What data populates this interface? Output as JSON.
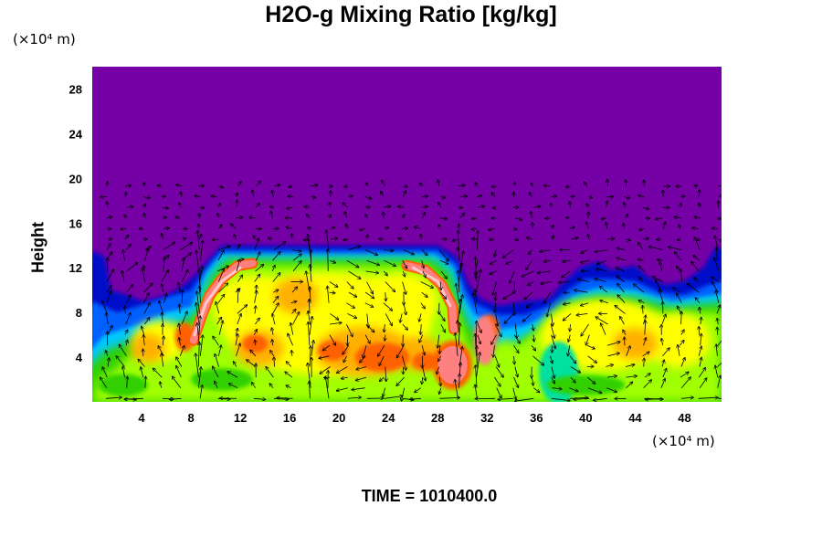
{
  "chart_data": {
    "type": "heatmap",
    "title": "H2O-g Mixing Ratio [kg/kg]",
    "ylabel": "Height",
    "xlabel": "",
    "y_unit": "(×10⁴ m)",
    "x_unit": "(×10⁴ m)",
    "xlim": [
      0,
      51
    ],
    "ylim": [
      0,
      30
    ],
    "x_ticks": [
      "4",
      "8",
      "12",
      "16",
      "20",
      "24",
      "28",
      "32",
      "36",
      "40",
      "44",
      "48"
    ],
    "y_ticks": [
      "4",
      "8",
      "12",
      "16",
      "20",
      "24",
      "28"
    ],
    "x_tick_values": [
      4,
      8,
      12,
      16,
      20,
      24,
      28,
      32,
      36,
      40,
      44,
      48
    ],
    "y_tick_values": [
      4,
      8,
      12,
      16,
      20,
      24,
      28
    ],
    "background_color": "#7400a6",
    "colormap": [
      "#7400a6",
      "#0008c8",
      "#0060ff",
      "#00c8ff",
      "#00e0a0",
      "#30d000",
      "#a0ff00",
      "#ffff00",
      "#ffb000",
      "#ff6000",
      "#ff2000",
      "#ff8080",
      "#ffc8c8"
    ],
    "overlay": "wind vector arrows",
    "moist_layer_top_y": 14,
    "vector_top_y": 20
  },
  "footer": {
    "time_label": "TIME = 1010400.0"
  }
}
